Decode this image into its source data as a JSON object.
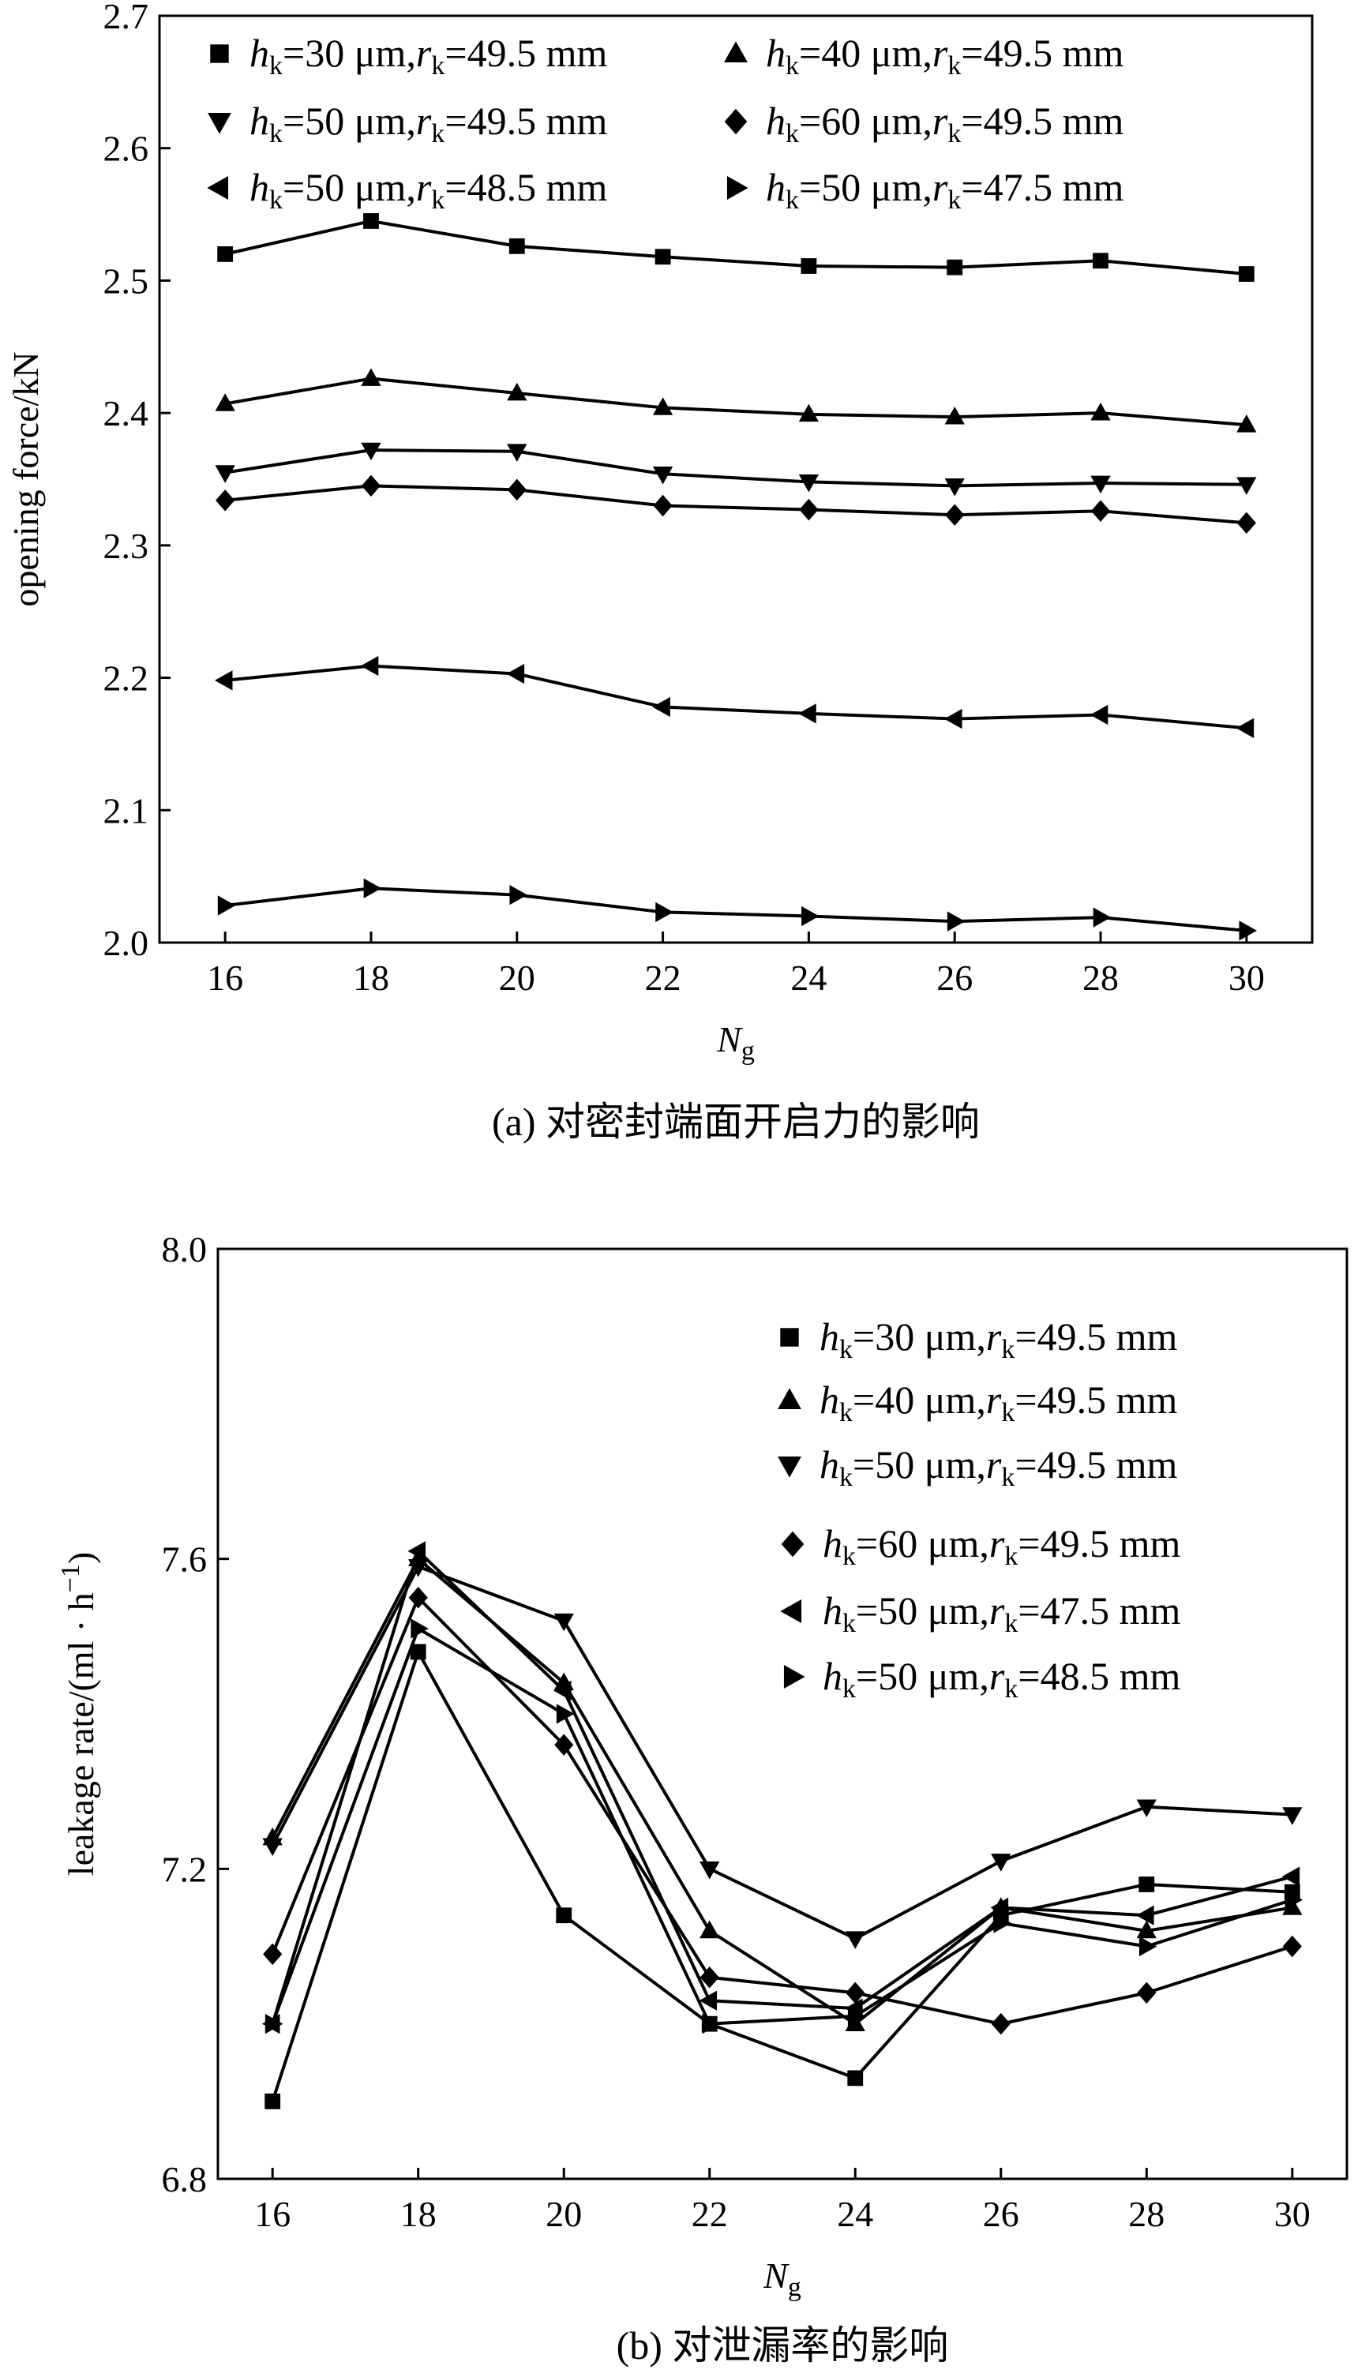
{
  "chart_data": [
    {
      "type": "line",
      "caption": "(a) 对密封端面开启力的影响",
      "ylabel": "opening force/kN",
      "xlabel_main": "N",
      "xlabel_sub": "g",
      "ylim": [
        2.0,
        2.7
      ],
      "yticks": [
        "2.0",
        "2.1",
        "2.2",
        "2.3",
        "2.4",
        "2.5",
        "2.6",
        "2.7"
      ],
      "x": [
        16,
        18,
        20,
        22,
        24,
        26,
        28,
        30
      ],
      "xticks": [
        "16",
        "18",
        "20",
        "22",
        "24",
        "26",
        "28",
        "30"
      ],
      "legend_placement": "top",
      "series": [
        {
          "marker": "square",
          "legend": {
            "h": "30",
            "r": "49.5"
          },
          "values": [
            2.52,
            2.545,
            2.526,
            2.518,
            2.511,
            2.51,
            2.515,
            2.505
          ]
        },
        {
          "marker": "triangle-up",
          "legend": {
            "h": "40",
            "r": "49.5"
          },
          "values": [
            2.407,
            2.426,
            2.415,
            2.404,
            2.399,
            2.397,
            2.4,
            2.391
          ]
        },
        {
          "marker": "triangle-down",
          "legend": {
            "h": "50",
            "r": "49.5"
          },
          "values": [
            2.355,
            2.372,
            2.371,
            2.354,
            2.348,
            2.345,
            2.347,
            2.346
          ]
        },
        {
          "marker": "diamond",
          "legend": {
            "h": "60",
            "r": "49.5"
          },
          "values": [
            2.334,
            2.345,
            2.342,
            2.33,
            2.327,
            2.323,
            2.326,
            2.317
          ]
        },
        {
          "marker": "triangle-left",
          "legend": {
            "h": "50",
            "r": "48.5"
          },
          "values": [
            2.198,
            2.209,
            2.203,
            2.178,
            2.173,
            2.169,
            2.172,
            2.162
          ]
        },
        {
          "marker": "triangle-right",
          "legend": {
            "h": "50",
            "r": "47.5"
          },
          "values": [
            2.028,
            2.041,
            2.036,
            2.023,
            2.02,
            2.016,
            2.019,
            2.009
          ]
        }
      ]
    },
    {
      "type": "line",
      "caption": "(b) 对泄漏率的影响",
      "ylabel": "leakage rate/(ml · h",
      "ylabel_sup": "−1",
      "ylabel_end": ")",
      "xlabel_main": "N",
      "xlabel_sub": "g",
      "ylim": [
        6.8,
        8.0
      ],
      "yticks": [
        "6.8",
        "7.2",
        "7.6",
        "8.0"
      ],
      "x": [
        16,
        18,
        20,
        22,
        24,
        26,
        28,
        30
      ],
      "xticks": [
        "16",
        "18",
        "20",
        "22",
        "24",
        "26",
        "28",
        "30"
      ],
      "legend_placement": "top-right",
      "series": [
        {
          "marker": "square",
          "legend": {
            "h": "30",
            "r": "49.5"
          },
          "values": [
            6.9,
            7.48,
            7.14,
            7.0,
            6.93,
            7.14,
            7.18,
            7.17
          ]
        },
        {
          "marker": "triangle-up",
          "legend": {
            "h": "40",
            "r": "49.5"
          },
          "values": [
            7.24,
            7.6,
            7.44,
            7.12,
            7.0,
            7.15,
            7.12,
            7.15
          ]
        },
        {
          "marker": "triangle-down",
          "legend": {
            "h": "50",
            "r": "49.5"
          },
          "values": [
            7.23,
            7.59,
            7.52,
            7.2,
            7.11,
            7.21,
            7.28,
            7.27
          ]
        },
        {
          "marker": "diamond",
          "legend": {
            "h": "60",
            "r": "49.5"
          },
          "values": [
            7.09,
            7.55,
            7.36,
            7.06,
            7.04,
            7.0,
            7.04,
            7.1
          ]
        },
        {
          "marker": "triangle-left",
          "legend": {
            "h": "50",
            "r": "47.5"
          },
          "values": [
            7.0,
            7.61,
            7.43,
            7.03,
            7.02,
            7.15,
            7.14,
            7.19
          ]
        },
        {
          "marker": "triangle-right",
          "legend": {
            "h": "50",
            "r": "48.5"
          },
          "values": [
            7.0,
            7.51,
            7.4,
            7.0,
            7.01,
            7.13,
            7.1,
            7.16
          ]
        }
      ]
    }
  ]
}
